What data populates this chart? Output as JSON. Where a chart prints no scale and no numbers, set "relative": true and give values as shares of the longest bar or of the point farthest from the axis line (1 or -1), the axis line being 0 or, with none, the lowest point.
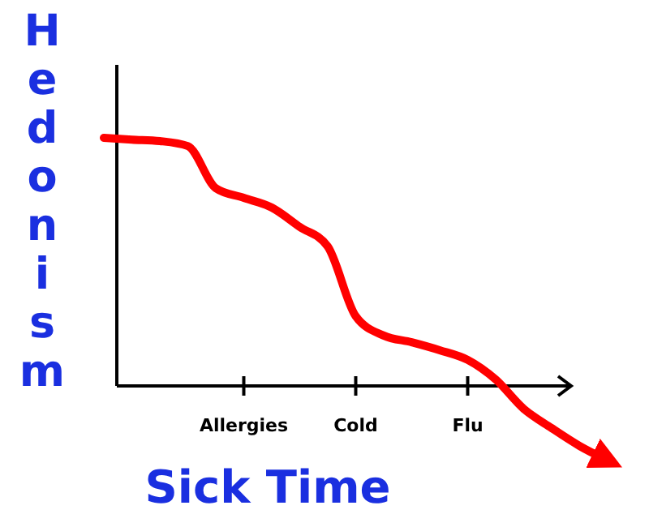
{
  "chart_data": {
    "type": "line",
    "relative": true,
    "xlabel": "Sick Time",
    "ylabel": "Hedonism",
    "tick_labels": "x",
    "marker": "none",
    "line_style": "solid",
    "categories": [
      null,
      null,
      null,
      null,
      null,
      "Allergies",
      null,
      null,
      null,
      "Cold",
      null,
      null,
      null,
      "Flu",
      null,
      null,
      null,
      null,
      null
    ],
    "series": [
      {
        "color": "#ff0000",
        "values": [
          1.0,
          0.993,
          0.987,
          0.967,
          0.797,
          0.758,
          0.719,
          0.641,
          0.562,
          0.281,
          0.203,
          0.176,
          0.144,
          0.105,
          0.026,
          -0.092,
          -0.17,
          -0.242,
          -0.3
        ]
      }
    ]
  }
}
